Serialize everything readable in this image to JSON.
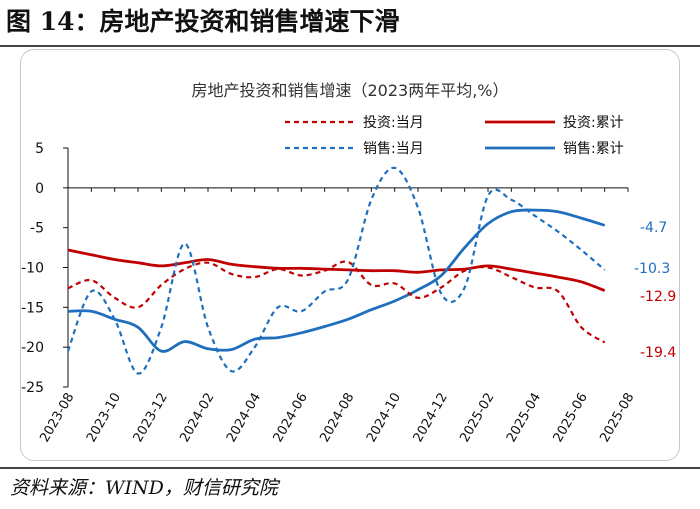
{
  "header": {
    "figure_title": "图 14：房地产投资和销售增速下滑"
  },
  "footer": {
    "source": "资料来源：WIND，财信研究院"
  },
  "chart_data": {
    "type": "line",
    "title": "房地产投资和销售增速（2023两年平均,%）",
    "xlabel": "",
    "ylabel": "",
    "ylim": [
      -25,
      5
    ],
    "yticks": [
      5,
      0,
      -5,
      -10,
      -15,
      -20,
      -25
    ],
    "grid": false,
    "legend_position": "top-right",
    "categories": [
      "2023-08",
      "2023-09",
      "2023-10",
      "2023-11",
      "2023-12",
      "2024-01",
      "2024-02",
      "2024-03",
      "2024-04",
      "2024-05",
      "2024-06",
      "2024-07",
      "2024-08",
      "2024-09",
      "2024-10",
      "2024-11",
      "2024-12",
      "2025-01",
      "2025-02",
      "2025-03",
      "2025-04",
      "2025-05",
      "2025-06",
      "2025-07",
      "2025-08"
    ],
    "tick_labels": [
      "2023-08",
      "2023-10",
      "2023-12",
      "2024-02",
      "2024-04",
      "2024-06",
      "2024-08",
      "2024-10",
      "2024-12",
      "2025-02",
      "2025-04",
      "2025-06",
      "2025-08"
    ],
    "series": [
      {
        "name": "投资:当月",
        "color": "#c00000",
        "style": "dashed",
        "values": [
          -12.6,
          -11.6,
          -13.8,
          -15.0,
          -12.2,
          -10.2,
          -9.4,
          -10.8,
          -11.2,
          -10.2,
          -11.0,
          -10.4,
          -9.3,
          -12.2,
          -12.0,
          -13.8,
          -12.5,
          -10.4,
          -10.0,
          -11.2,
          -12.5,
          -13.0,
          -17.5,
          -19.4,
          -19.4
        ],
        "end_label": "-19.4"
      },
      {
        "name": "投资:累计",
        "color": "#c00000",
        "style": "solid",
        "values": [
          -7.8,
          -8.4,
          -9.0,
          -9.4,
          -9.8,
          -9.4,
          -9.0,
          -9.6,
          -9.9,
          -10.1,
          -10.1,
          -10.2,
          -10.3,
          -10.4,
          -10.4,
          -10.6,
          -10.3,
          -10.2,
          -9.8,
          -10.2,
          -10.7,
          -11.2,
          -11.8,
          -12.9,
          -12.9
        ],
        "end_label": "-12.9"
      },
      {
        "name": "销售:当月",
        "color": "#1f6fbe",
        "style": "dashed",
        "values": [
          -20.5,
          -13.0,
          -16.5,
          -23.3,
          -17.5,
          -7.0,
          -17.5,
          -23.0,
          -20.0,
          -15.0,
          -15.5,
          -13.0,
          -11.5,
          -1.5,
          2.5,
          -2.5,
          -13.3,
          -12.5,
          -1.0,
          -1.5,
          -3.5,
          -5.5,
          -7.8,
          -10.3,
          -10.3
        ],
        "end_label": "-10.3"
      },
      {
        "name": "销售:累计",
        "color": "#1f6fbe",
        "style": "solid",
        "values": [
          -15.5,
          -15.5,
          -16.5,
          -17.5,
          -20.5,
          -19.3,
          -20.2,
          -20.3,
          -19.0,
          -18.8,
          -18.2,
          -17.4,
          -16.5,
          -15.3,
          -14.2,
          -12.8,
          -11.0,
          -7.5,
          -4.5,
          -3.0,
          -2.8,
          -3.0,
          -3.8,
          -4.7,
          -4.7
        ],
        "end_label": "-4.7"
      }
    ]
  }
}
